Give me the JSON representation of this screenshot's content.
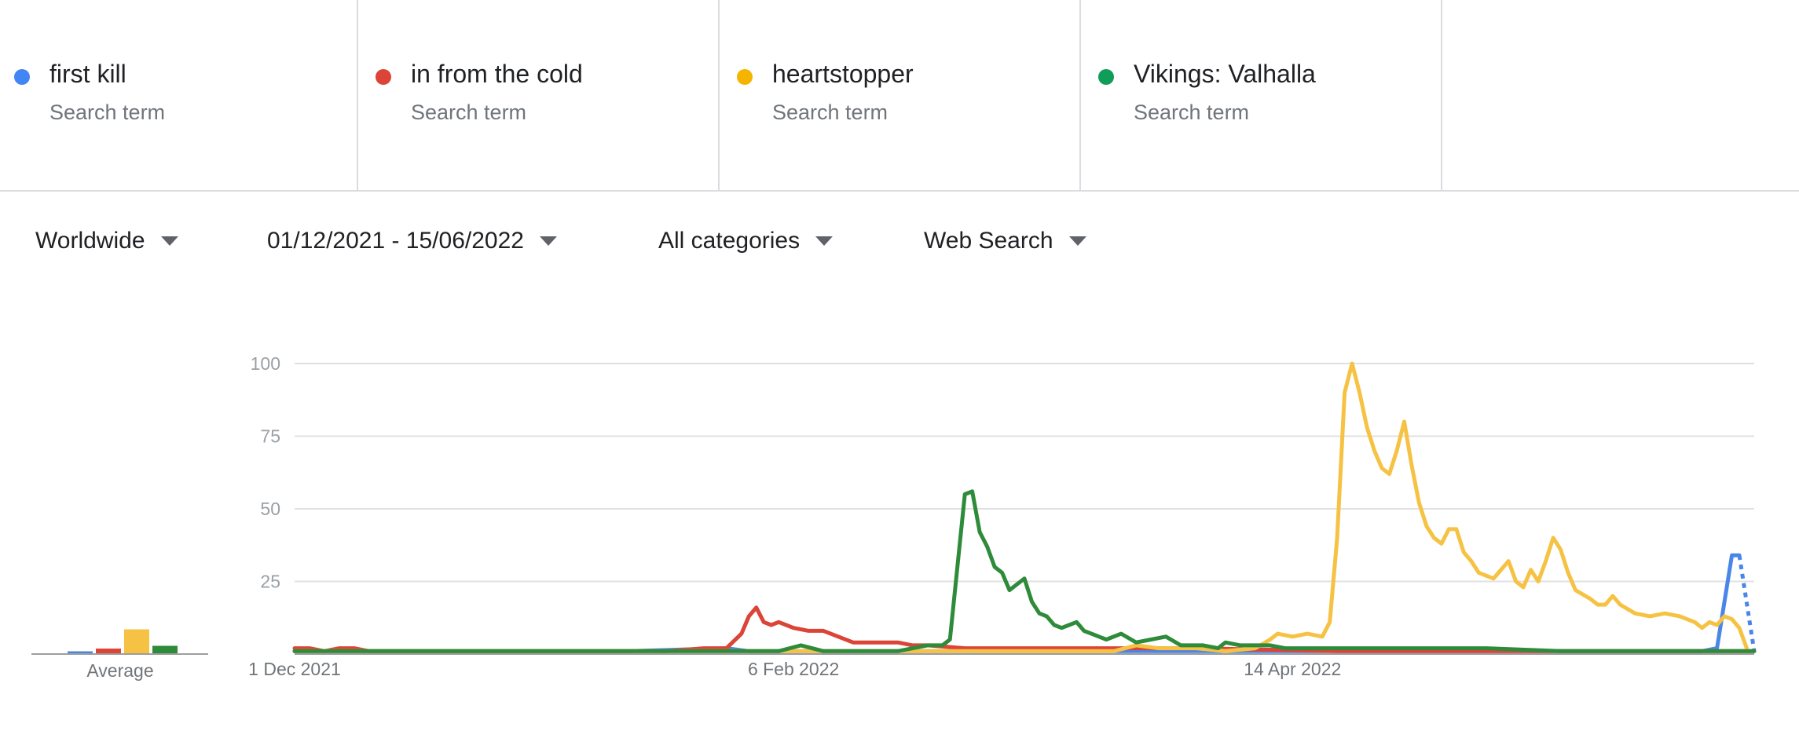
{
  "terms": [
    {
      "name": "first kill",
      "sub": "Search term",
      "color": "#4285f4"
    },
    {
      "name": "in from the cold",
      "sub": "Search term",
      "color": "#db4437"
    },
    {
      "name": "heartstopper",
      "sub": "Search term",
      "color": "#f4b400"
    },
    {
      "name": "Vikings: Valhalla",
      "sub": "Search term",
      "color": "#0f9d58"
    }
  ],
  "filters": {
    "region": "Worldwide",
    "date_range": "01/12/2021 - 15/06/2022",
    "category": "All categories",
    "search_type": "Web Search"
  },
  "average_label": "Average",
  "chart_data": {
    "type": "line",
    "x_ticks": [
      "1 Dec 2021",
      "6 Feb 2022",
      "14 Apr 2022"
    ],
    "y_ticks": [
      100,
      75,
      50,
      25
    ],
    "ylim": [
      0,
      100
    ],
    "xlim": [
      "2021-12-01",
      "2022-06-15"
    ],
    "grid": true,
    "averages": {
      "first kill": 1,
      "in from the cold": 2,
      "heartstopper": 9,
      "Vikings: Valhalla": 3
    },
    "series": [
      {
        "name": "first kill",
        "color": "#4a86e8",
        "points": [
          [
            "2021-12-01",
            1
          ],
          [
            "2022-01-15",
            1
          ],
          [
            "2022-01-28",
            2
          ],
          [
            "2022-01-31",
            1
          ],
          [
            "2022-03-15",
            1
          ],
          [
            "2022-04-10",
            1
          ],
          [
            "2022-05-30",
            1
          ],
          [
            "2022-06-08",
            1
          ],
          [
            "2022-06-10",
            2
          ],
          [
            "2022-06-12",
            34
          ],
          [
            "2022-06-13",
            34
          ]
        ],
        "partial": [
          [
            "2022-06-13",
            34
          ],
          [
            "2022-06-15",
            1
          ]
        ]
      },
      {
        "name": "in from the cold",
        "color": "#db4437",
        "points": [
          [
            "2021-12-01",
            2
          ],
          [
            "2021-12-03",
            2
          ],
          [
            "2021-12-05",
            1
          ],
          [
            "2021-12-07",
            2
          ],
          [
            "2021-12-09",
            2
          ],
          [
            "2021-12-11",
            1
          ],
          [
            "2021-12-15",
            1
          ],
          [
            "2022-01-15",
            1
          ],
          [
            "2022-01-20",
            1
          ],
          [
            "2022-01-25",
            2
          ],
          [
            "2022-01-28",
            2
          ],
          [
            "2022-01-30",
            7
          ],
          [
            "2022-01-31",
            13
          ],
          [
            "2022-02-01",
            16
          ],
          [
            "2022-02-02",
            11
          ],
          [
            "2022-02-03",
            10
          ],
          [
            "2022-02-04",
            11
          ],
          [
            "2022-02-05",
            10
          ],
          [
            "2022-02-06",
            9
          ],
          [
            "2022-02-08",
            8
          ],
          [
            "2022-02-10",
            8
          ],
          [
            "2022-02-12",
            6
          ],
          [
            "2022-02-14",
            4
          ],
          [
            "2022-02-20",
            4
          ],
          [
            "2022-02-22",
            3
          ],
          [
            "2022-02-24",
            3
          ],
          [
            "2022-03-01",
            2
          ],
          [
            "2022-03-15",
            2
          ],
          [
            "2022-04-01",
            2
          ],
          [
            "2022-04-20",
            1
          ],
          [
            "2022-05-20",
            1
          ],
          [
            "2022-06-15",
            1
          ]
        ]
      },
      {
        "name": "heartstopper",
        "color": "#f6c244",
        "points": [
          [
            "2021-12-01",
            1
          ],
          [
            "2022-01-31",
            1
          ],
          [
            "2022-03-21",
            1
          ],
          [
            "2022-03-24",
            3
          ],
          [
            "2022-03-27",
            2
          ],
          [
            "2022-04-01",
            2
          ],
          [
            "2022-04-05",
            1
          ],
          [
            "2022-04-09",
            2
          ],
          [
            "2022-04-11",
            5
          ],
          [
            "2022-04-12",
            7
          ],
          [
            "2022-04-14",
            6
          ],
          [
            "2022-04-16",
            7
          ],
          [
            "2022-04-18",
            6
          ],
          [
            "2022-04-19",
            11
          ],
          [
            "2022-04-20",
            40
          ],
          [
            "2022-04-21",
            90
          ],
          [
            "2022-04-22",
            100
          ],
          [
            "2022-04-23",
            90
          ],
          [
            "2022-04-24",
            78
          ],
          [
            "2022-04-25",
            70
          ],
          [
            "2022-04-26",
            64
          ],
          [
            "2022-04-27",
            62
          ],
          [
            "2022-04-28",
            70
          ],
          [
            "2022-04-29",
            80
          ],
          [
            "2022-04-30",
            65
          ],
          [
            "2022-05-01",
            52
          ],
          [
            "2022-05-02",
            44
          ],
          [
            "2022-05-03",
            40
          ],
          [
            "2022-05-04",
            38
          ],
          [
            "2022-05-05",
            43
          ],
          [
            "2022-05-06",
            43
          ],
          [
            "2022-05-07",
            35
          ],
          [
            "2022-05-08",
            32
          ],
          [
            "2022-05-09",
            28
          ],
          [
            "2022-05-11",
            26
          ],
          [
            "2022-05-13",
            32
          ],
          [
            "2022-05-14",
            25
          ],
          [
            "2022-05-15",
            23
          ],
          [
            "2022-05-16",
            29
          ],
          [
            "2022-05-17",
            25
          ],
          [
            "2022-05-18",
            32
          ],
          [
            "2022-05-19",
            40
          ],
          [
            "2022-05-20",
            36
          ],
          [
            "2022-05-21",
            28
          ],
          [
            "2022-05-22",
            22
          ],
          [
            "2022-05-24",
            19
          ],
          [
            "2022-05-25",
            17
          ],
          [
            "2022-05-26",
            17
          ],
          [
            "2022-05-27",
            20
          ],
          [
            "2022-05-28",
            17
          ],
          [
            "2022-05-30",
            14
          ],
          [
            "2022-06-01",
            13
          ],
          [
            "2022-06-03",
            14
          ],
          [
            "2022-06-05",
            13
          ],
          [
            "2022-06-07",
            11
          ],
          [
            "2022-06-08",
            9
          ],
          [
            "2022-06-09",
            11
          ],
          [
            "2022-06-10",
            10
          ],
          [
            "2022-06-11",
            13
          ],
          [
            "2022-06-12",
            12
          ],
          [
            "2022-06-13",
            9
          ],
          [
            "2022-06-14",
            2
          ]
        ]
      },
      {
        "name": "Vikings: Valhalla",
        "color": "#2e8b3a",
        "points": [
          [
            "2021-12-01",
            1
          ],
          [
            "2022-02-04",
            1
          ],
          [
            "2022-02-07",
            3
          ],
          [
            "2022-02-10",
            1
          ],
          [
            "2022-02-20",
            1
          ],
          [
            "2022-02-24",
            3
          ],
          [
            "2022-02-26",
            3
          ],
          [
            "2022-02-27",
            5
          ],
          [
            "2022-02-28",
            30
          ],
          [
            "2022-03-01",
            55
          ],
          [
            "2022-03-02",
            56
          ],
          [
            "2022-03-03",
            42
          ],
          [
            "2022-03-04",
            37
          ],
          [
            "2022-03-05",
            30
          ],
          [
            "2022-03-06",
            28
          ],
          [
            "2022-03-07",
            22
          ],
          [
            "2022-03-08",
            24
          ],
          [
            "2022-03-09",
            26
          ],
          [
            "2022-03-10",
            18
          ],
          [
            "2022-03-11",
            14
          ],
          [
            "2022-03-12",
            13
          ],
          [
            "2022-03-13",
            10
          ],
          [
            "2022-03-14",
            9
          ],
          [
            "2022-03-15",
            10
          ],
          [
            "2022-03-16",
            11
          ],
          [
            "2022-03-17",
            8
          ],
          [
            "2022-03-18",
            7
          ],
          [
            "2022-03-19",
            6
          ],
          [
            "2022-03-20",
            5
          ],
          [
            "2022-03-22",
            7
          ],
          [
            "2022-03-24",
            4
          ],
          [
            "2022-03-26",
            5
          ],
          [
            "2022-03-28",
            6
          ],
          [
            "2022-03-30",
            3
          ],
          [
            "2022-04-02",
            3
          ],
          [
            "2022-04-04",
            2
          ],
          [
            "2022-04-05",
            4
          ],
          [
            "2022-04-07",
            3
          ],
          [
            "2022-04-11",
            3
          ],
          [
            "2022-04-13",
            2
          ],
          [
            "2022-04-20",
            2
          ],
          [
            "2022-05-10",
            2
          ],
          [
            "2022-05-20",
            1
          ],
          [
            "2022-06-15",
            1
          ]
        ]
      }
    ]
  }
}
